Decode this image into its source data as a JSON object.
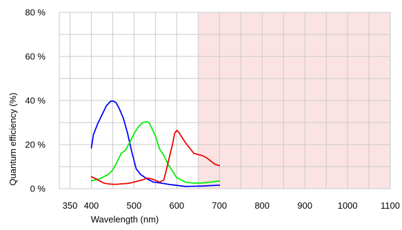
{
  "chart_data": {
    "type": "line",
    "title": "",
    "xlabel": "Wavelength (nm)",
    "ylabel": "Quantum efficiency (%)",
    "xlim": [
      325,
      1100
    ],
    "ylim": [
      0,
      80
    ],
    "x_ticks": [
      350,
      400,
      500,
      600,
      700,
      800,
      900,
      1000,
      1100
    ],
    "x_tick_labels": [
      "350",
      "400",
      "500",
      "600",
      "700",
      "800",
      "900",
      "1000",
      "1100"
    ],
    "x_grid": [
      350,
      400,
      450,
      500,
      550,
      600,
      650,
      700,
      750,
      800,
      850,
      900,
      950,
      1000,
      1050,
      1100
    ],
    "y_ticks": [
      0,
      20,
      40,
      60,
      80
    ],
    "y_tick_labels": [
      "0 %",
      "20 %",
      "40 %",
      "60 %",
      "80 %"
    ],
    "y_grid": [
      0,
      10,
      20,
      30,
      40,
      50,
      60,
      70,
      80
    ],
    "grid": true,
    "shaded_region": {
      "x_range": [
        650,
        1100
      ],
      "color": "#fbe3e3"
    },
    "series": [
      {
        "color": "#0000ff",
        "x": [
          400,
          405,
          415,
          425,
          435,
          445,
          452,
          458,
          465,
          475,
          485,
          495,
          505,
          515,
          530,
          545,
          565,
          580,
          600,
          620,
          640,
          660,
          680,
          700
        ],
        "y": [
          18.5,
          24.5,
          29.5,
          33.5,
          37.5,
          39.7,
          39.7,
          39,
          36.5,
          32,
          25,
          16.5,
          9,
          6.5,
          4.5,
          3,
          2.5,
          2,
          1.5,
          1,
          1.1,
          1.2,
          1.4,
          1.6
        ]
      },
      {
        "color": "#00ee00",
        "x": [
          400,
          410,
          420,
          430,
          440,
          450,
          460,
          470,
          480,
          490,
          500,
          510,
          520,
          530,
          535,
          540,
          550,
          560,
          570,
          580,
          590,
          600,
          620,
          640,
          660,
          680,
          700
        ],
        "y": [
          3.5,
          4,
          4.5,
          5.5,
          6.5,
          8.5,
          12,
          16,
          17.5,
          21,
          25,
          28,
          30,
          30.4,
          30,
          28,
          24,
          18,
          15,
          11,
          8,
          5,
          3,
          2.5,
          2.6,
          3,
          3.5
        ]
      },
      {
        "color": "#ee0000",
        "x": [
          400,
          410,
          420,
          430,
          440,
          450,
          460,
          470,
          480,
          490,
          500,
          510,
          520,
          530,
          540,
          550,
          560,
          570,
          580,
          590,
          595,
          600,
          605,
          610,
          620,
          630,
          640,
          650,
          660,
          670,
          680,
          690,
          700
        ],
        "y": [
          5.5,
          4.5,
          3.5,
          2.5,
          2.2,
          2,
          2,
          2.2,
          2.3,
          2.5,
          3,
          3.5,
          4,
          4.8,
          4.5,
          3.8,
          3,
          4,
          12,
          20,
          25,
          26.5,
          25.5,
          24,
          21,
          18.5,
          16,
          15.5,
          15,
          14,
          12.5,
          11,
          10.5
        ]
      }
    ]
  }
}
